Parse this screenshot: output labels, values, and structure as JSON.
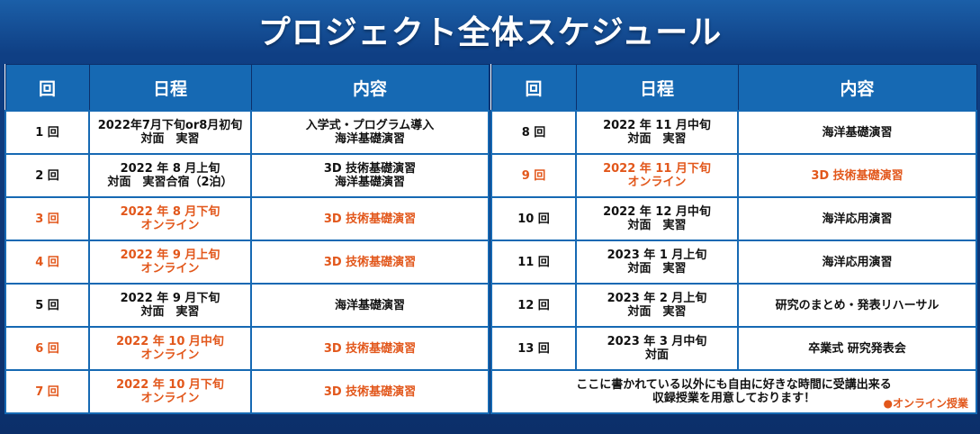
{
  "title": "プロジェクト全体スケジュール",
  "headers": {
    "num": "回",
    "date": "日程",
    "content": "内容"
  },
  "left_rows": [
    {
      "num": "1 回",
      "date1": "2022年7月下旬or8月初旬",
      "date2": "対面　実習",
      "content1": "入学式・プログラム導入",
      "content2": "海洋基礎演習",
      "online": false
    },
    {
      "num": "2 回",
      "date1": "2022 年 8 月上旬",
      "date2": "対面　実習合宿（2泊）",
      "content1": "3D 技術基礎演習",
      "content2": "海洋基礎演習",
      "online": false
    },
    {
      "num": "3 回",
      "date1": "2022 年 8 月下旬",
      "date2": "オンライン",
      "content1": "3D 技術基礎演習",
      "content2": "",
      "online": true
    },
    {
      "num": "4 回",
      "date1": "2022 年 9 月上旬",
      "date2": "オンライン",
      "content1": "3D 技術基礎演習",
      "content2": "",
      "online": true
    },
    {
      "num": "5 回",
      "date1": "2022 年 9 月下旬",
      "date2": "対面　実習",
      "content1": "海洋基礎演習",
      "content2": "",
      "online": false
    },
    {
      "num": "6 回",
      "date1": "2022 年 10 月中旬",
      "date2": "オンライン",
      "content1": "3D 技術基礎演習",
      "content2": "",
      "online": true
    },
    {
      "num": "7 回",
      "date1": "2022 年 10 月下旬",
      "date2": "オンライン",
      "content1": "3D 技術基礎演習",
      "content2": "",
      "online": true
    }
  ],
  "right_rows": [
    {
      "num": "8 回",
      "date1": "2022 年 11 月中旬",
      "date2": "対面　実習",
      "content1": "海洋基礎演習",
      "content2": "",
      "online": false
    },
    {
      "num": "9 回",
      "date1": "2022 年 11 月下旬",
      "date2": "オンライン",
      "content1": "3D 技術基礎演習",
      "content2": "",
      "online": true
    },
    {
      "num": "10 回",
      "date1": "2022 年 12 月中旬",
      "date2": "対面　実習",
      "content1": "海洋応用演習",
      "content2": "",
      "online": false
    },
    {
      "num": "11 回",
      "date1": "2023 年 1 月上旬",
      "date2": "対面　実習",
      "content1": "海洋応用演習",
      "content2": "",
      "online": false
    },
    {
      "num": "12 回",
      "date1": "2023 年 2 月上旬",
      "date2": "対面　実習",
      "content1": "研究のまとめ・発表リハーサル",
      "content2": "",
      "online": false
    },
    {
      "num": "13 回",
      "date1": "2023 年 3 月中旬",
      "date2": "対面",
      "content1": "卒業式 研究発表会",
      "content2": "",
      "online": false
    }
  ],
  "note": {
    "line1": "ここに書かれている以外にも自由に好きな時間に受講出来る",
    "line2": "収録授業を用意しております！"
  },
  "legend": "●オンライン授業",
  "colors": {
    "header_bg": "#1669b3",
    "online": "#e2571b",
    "background": "#0f3f84"
  }
}
